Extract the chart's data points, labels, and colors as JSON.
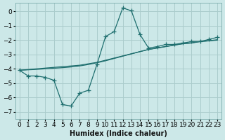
{
  "xlabel": "Humidex (Indice chaleur)",
  "background_color": "#cce8e8",
  "grid_color": "#aacccc",
  "line_color": "#1e6e6e",
  "x_data": [
    0,
    1,
    2,
    3,
    4,
    5,
    6,
    7,
    8,
    9,
    10,
    11,
    12,
    13,
    14,
    15,
    16,
    17,
    18,
    19,
    20,
    21,
    22,
    23
  ],
  "y_main": [
    -4.1,
    -4.5,
    -4.5,
    -4.6,
    -4.8,
    -6.5,
    -6.6,
    -5.7,
    -5.5,
    -3.7,
    -1.75,
    -1.4,
    0.25,
    0.05,
    -1.6,
    -2.55,
    -2.45,
    -2.3,
    -2.3,
    -2.2,
    -2.1,
    -2.1,
    -1.95,
    -1.8
  ],
  "y_line1": [
    -4.1,
    -4.05,
    -4.0,
    -3.95,
    -3.9,
    -3.85,
    -3.8,
    -3.75,
    -3.65,
    -3.55,
    -3.4,
    -3.25,
    -3.1,
    -2.95,
    -2.8,
    -2.65,
    -2.55,
    -2.45,
    -2.35,
    -2.25,
    -2.2,
    -2.1,
    -2.05,
    -2.0
  ],
  "y_line2": [
    -4.1,
    -4.07,
    -4.04,
    -4.0,
    -3.96,
    -3.92,
    -3.87,
    -3.8,
    -3.7,
    -3.58,
    -3.44,
    -3.28,
    -3.12,
    -2.96,
    -2.8,
    -2.65,
    -2.54,
    -2.44,
    -2.34,
    -2.24,
    -2.19,
    -2.09,
    -2.04,
    -1.97
  ],
  "ylim": [
    -7.5,
    0.6
  ],
  "xlim": [
    -0.5,
    23.5
  ],
  "yticks": [
    0,
    -1,
    -2,
    -3,
    -4,
    -5,
    -6,
    -7
  ],
  "xticks": [
    0,
    1,
    2,
    3,
    4,
    5,
    6,
    7,
    8,
    9,
    10,
    11,
    12,
    13,
    14,
    15,
    16,
    17,
    18,
    19,
    20,
    21,
    22,
    23
  ],
  "marker": "+",
  "markersize": 4,
  "linewidth": 0.9,
  "tick_fontsize": 6.5,
  "xlabel_fontsize": 7
}
